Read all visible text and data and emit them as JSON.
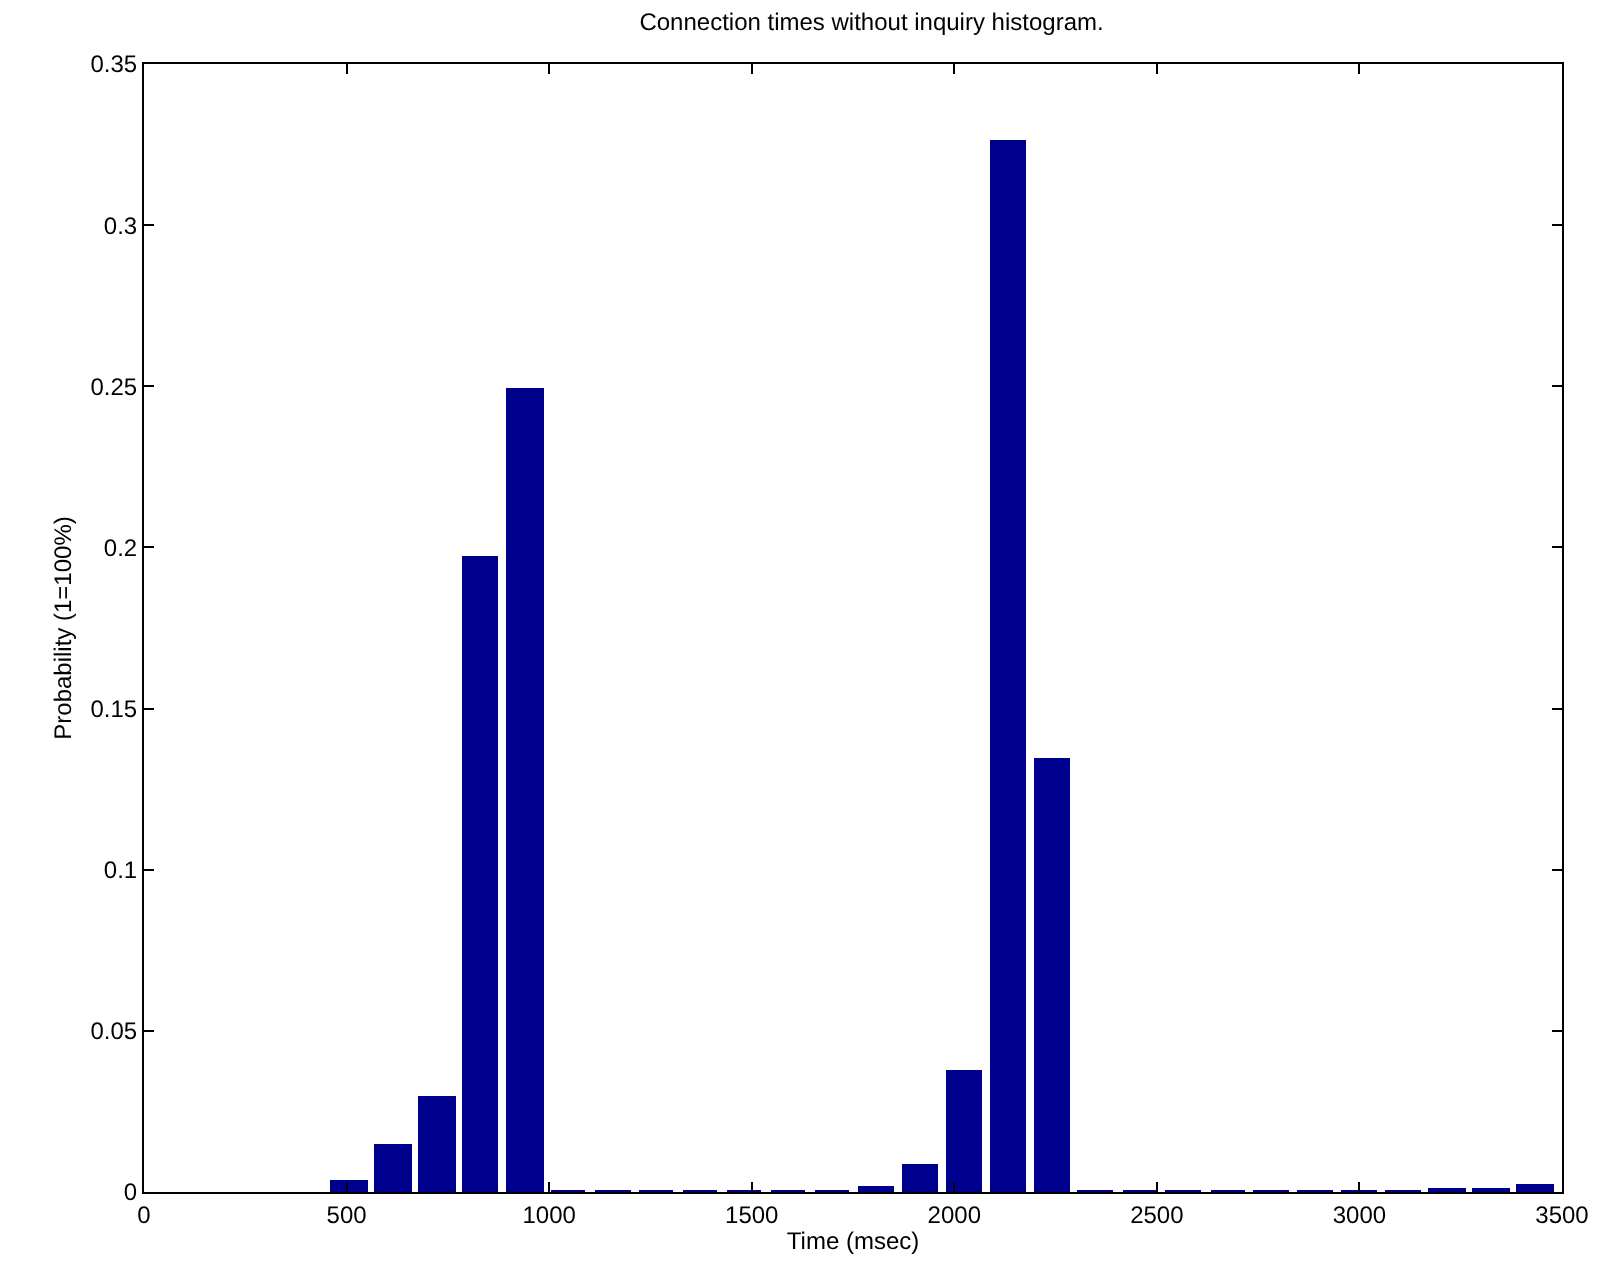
{
  "chart_data": {
    "type": "bar",
    "title": "Connection times without inquiry histogram.",
    "xlabel": "Time (msec)",
    "ylabel": "Probability (1=100%)",
    "x": [
      508,
      616,
      725,
      833,
      942,
      1050,
      1159,
      1267,
      1375,
      1484,
      1592,
      1701,
      1809,
      1918,
      2026,
      2135,
      2243,
      2351,
      2460,
      2568,
      2677,
      2785,
      2894,
      3002,
      3110,
      3219,
      3327,
      3436
    ],
    "values": [
      0.003,
      0.014,
      0.029,
      0.197,
      0.249,
      0,
      0,
      0,
      0,
      0,
      0,
      0,
      0.001,
      0.008,
      0.037,
      0.326,
      0.134,
      0,
      0,
      0,
      0,
      0,
      0,
      0,
      0,
      0.0005,
      0.0005,
      0.002
    ],
    "color": "#00008f",
    "xlim": [
      0,
      3500
    ],
    "xticks": [
      0,
      500,
      1000,
      1500,
      2000,
      2500,
      3000,
      3500
    ],
    "ylim": [
      0,
      0.35
    ],
    "yticks": [
      0,
      0.05,
      0.1,
      0.15,
      0.2,
      0.25,
      0.3,
      0.35
    ]
  }
}
